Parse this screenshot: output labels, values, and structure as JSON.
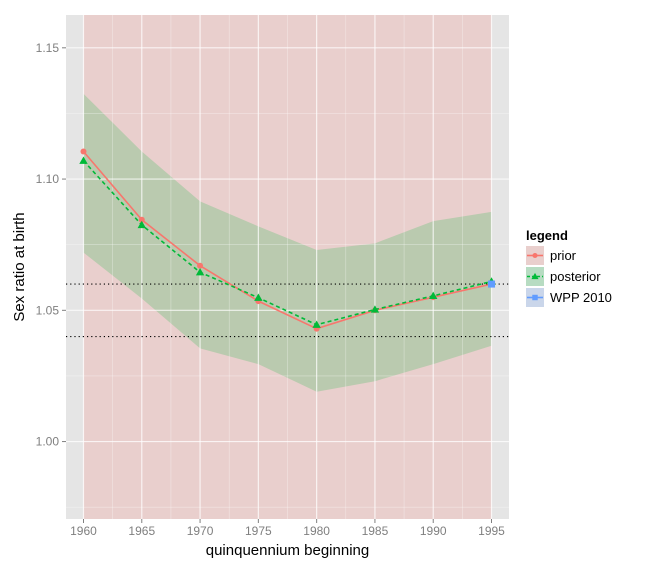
{
  "chart_data": {
    "type": "line",
    "title": "",
    "xlabel": "quinquennium beginning",
    "ylabel": "Sex ratio at birth",
    "xlim": [
      1958.5,
      1996.5
    ],
    "ylim": [
      0.9705,
      1.1625
    ],
    "x_ticks": [
      1960,
      1965,
      1970,
      1975,
      1980,
      1985,
      1990,
      1995
    ],
    "x_tick_labels": [
      "1960",
      "1965",
      "1970",
      "1975",
      "1980",
      "1985",
      "1990",
      "1995"
    ],
    "y_ticks": [
      1.0,
      1.05,
      1.1,
      1.15
    ],
    "y_tick_labels": [
      "1.00",
      "1.05",
      "1.10",
      "1.15"
    ],
    "grid": true,
    "legend": {
      "title": "legend",
      "position": "right",
      "entries": [
        "prior",
        "posterior",
        "WPP 2010"
      ]
    },
    "series": [
      {
        "name": "prior",
        "color": "#f8766d",
        "marker": "circle",
        "line": "solid",
        "x": [
          1960,
          1965,
          1970,
          1975,
          1980,
          1985,
          1990,
          1995
        ],
        "values": [
          1.1105,
          1.0845,
          1.067,
          1.0535,
          1.043,
          1.05,
          1.055,
          1.06
        ]
      },
      {
        "name": "posterior",
        "color": "#00ba38",
        "marker": "triangle",
        "line": "dashed",
        "x": [
          1960,
          1965,
          1970,
          1975,
          1980,
          1985,
          1990,
          1995
        ],
        "values": [
          1.107,
          1.0825,
          1.0645,
          1.0548,
          1.0445,
          1.0503,
          1.0555,
          1.061
        ]
      },
      {
        "name": "WPP 2010",
        "color": "#619cff",
        "marker": "square",
        "line": "solid",
        "x": [
          1995
        ],
        "values": [
          1.06
        ]
      }
    ],
    "bands": [
      {
        "series": "prior",
        "color": "#f8766d",
        "x": [
          1960,
          1995
        ],
        "lower": [
          0.9705,
          0.9705
        ],
        "upper": [
          1.1625,
          1.1625
        ]
      },
      {
        "series": "posterior",
        "color": "#00ba38",
        "x": [
          1960,
          1965,
          1970,
          1975,
          1980,
          1985,
          1990,
          1995
        ],
        "lower": [
          1.072,
          1.0545,
          1.0355,
          1.0295,
          1.019,
          1.023,
          1.0295,
          1.0365
        ],
        "upper": [
          1.1325,
          1.1105,
          1.0915,
          1.082,
          1.073,
          1.0755,
          1.084,
          1.0875
        ]
      }
    ],
    "reference_lines": [
      {
        "y": 1.06,
        "style": "dotted"
      },
      {
        "y": 1.04,
        "style": "dotted"
      }
    ]
  }
}
